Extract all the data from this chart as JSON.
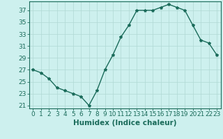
{
  "x": [
    0,
    1,
    2,
    3,
    4,
    5,
    6,
    7,
    8,
    9,
    10,
    11,
    12,
    13,
    14,
    15,
    16,
    17,
    18,
    19,
    20,
    21,
    22,
    23
  ],
  "y": [
    27,
    26.5,
    25.5,
    24,
    23.5,
    23,
    22.5,
    21,
    23.5,
    27,
    29.5,
    32.5,
    34.5,
    37,
    37,
    37,
    37.5,
    38,
    37.5,
    37,
    34.5,
    32,
    31.5,
    29.5
  ],
  "line_color": "#1a6b5a",
  "marker": "*",
  "marker_size": 3,
  "bg_color": "#cdf0ee",
  "grid_color": "#b0d8d4",
  "xlabel": "Humidex (Indice chaleur)",
  "ylabel": "",
  "xlim": [
    -0.5,
    23.5
  ],
  "ylim": [
    20.5,
    38.5
  ],
  "yticks": [
    21,
    23,
    25,
    27,
    29,
    31,
    33,
    35,
    37
  ],
  "xticks": [
    0,
    1,
    2,
    3,
    4,
    5,
    6,
    7,
    8,
    9,
    10,
    11,
    12,
    13,
    14,
    15,
    16,
    17,
    18,
    19,
    20,
    21,
    22,
    23
  ],
  "xlabel_fontsize": 7.5,
  "tick_fontsize": 6.5,
  "line_width": 1.0
}
